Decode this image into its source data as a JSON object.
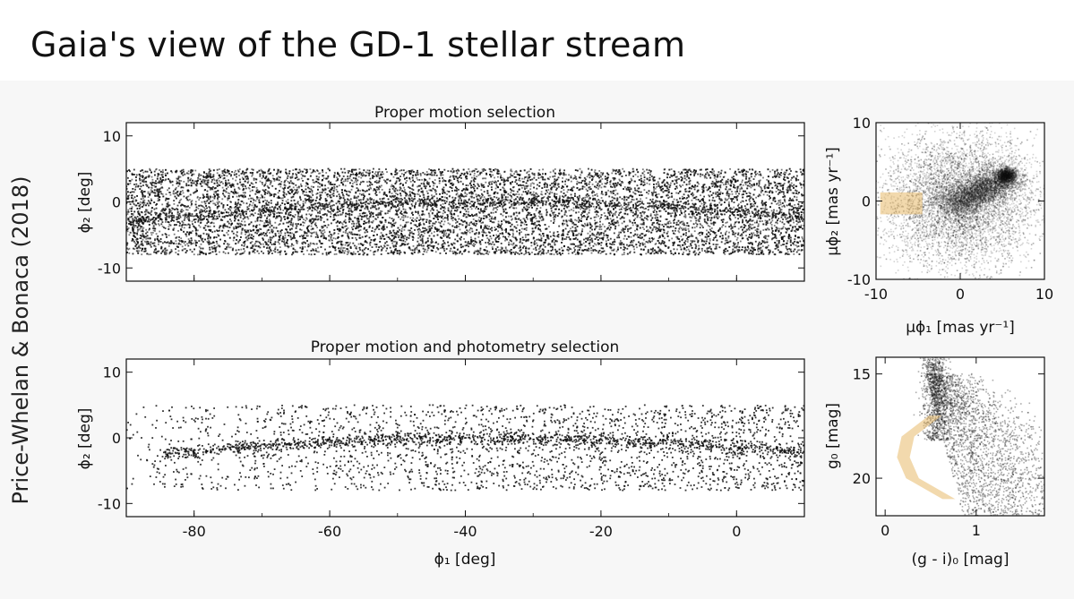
{
  "title": "Gaia's view of the GD-1 stellar stream",
  "credit": "Price-Whelan & Bonaca (2018)",
  "colors": {
    "background": "#f7f7f7",
    "points": "#111111",
    "selection_box": "#e8b96a"
  },
  "chart_data": [
    {
      "id": "pm-selection-sky",
      "type": "scatter",
      "title": "Proper motion selection",
      "xlabel": "",
      "ylabel": "ϕ₂ [deg]",
      "xlim": [
        -90,
        10
      ],
      "ylim": [
        -12,
        12
      ],
      "xticks": [
        -80,
        -60,
        -40,
        -20,
        0
      ],
      "yticks": [
        10,
        0,
        -10
      ],
      "yticklabels": [
        "10",
        "0",
        "-10"
      ],
      "xticklabels": [],
      "filled_band": {
        "phi2_min": -8,
        "phi2_max": 5,
        "description": "dense field of stars"
      },
      "stream_track": {
        "phi1": [
          -90,
          -70,
          -50,
          -30,
          -10,
          10
        ],
        "phi2": [
          -3,
          -1.2,
          -0.2,
          0,
          -0.7,
          -2.2
        ]
      }
    },
    {
      "id": "pm-space",
      "type": "scatter",
      "title": "",
      "xlabel": "μϕ₁ [mas yr⁻¹]",
      "ylabel": "μϕ₂ [mas yr⁻¹]",
      "xlim": [
        -10,
        10
      ],
      "ylim": [
        -10,
        10
      ],
      "xticks": [
        -10,
        0,
        10
      ],
      "xticklabels": [
        "-10",
        "0",
        "10"
      ],
      "yticks": [
        10,
        0,
        -10
      ],
      "yticklabels": [
        "10",
        "0",
        "-10"
      ],
      "selection_box": {
        "x": [
          -9.5,
          -4.5
        ],
        "y": [
          -1.7,
          1.1
        ]
      },
      "clumps": [
        {
          "x": 5.5,
          "y": 3.2,
          "spread": 1.0,
          "weight": "high"
        },
        {
          "x": 0,
          "y": 0,
          "spread": 4,
          "weight": "medium"
        }
      ]
    },
    {
      "id": "pm-phot-selection-sky",
      "type": "scatter",
      "title": "Proper motion and photometry selection",
      "xlabel": "ϕ₁ [deg]",
      "ylabel": "ϕ₂ [deg]",
      "xlim": [
        -90,
        10
      ],
      "ylim": [
        -12,
        12
      ],
      "xticks": [
        -80,
        -60,
        -40,
        -20,
        0
      ],
      "xticklabels": [
        "-80",
        "-60",
        "-40",
        "-20",
        "0"
      ],
      "yticks": [
        10,
        0,
        -10
      ],
      "yticklabels": [
        "10",
        "0",
        "-10"
      ],
      "stream_track": {
        "phi1": [
          -90,
          -70,
          -50,
          -30,
          -10,
          10
        ],
        "phi2": [
          -3,
          -1.2,
          -0.2,
          0,
          -0.7,
          -2.2
        ]
      },
      "background_band": {
        "phi2_min": -8,
        "phi2_max": 5
      }
    },
    {
      "id": "cmd",
      "type": "scatter",
      "title": "",
      "xlabel": "(g - i)₀ [mag]",
      "ylabel": "g₀ [mag]",
      "xlim": [
        -0.1,
        1.75
      ],
      "ylim": [
        21.8,
        14.2
      ],
      "xticks": [
        0,
        1
      ],
      "xticklabels": [
        "0",
        "1"
      ],
      "yticks": [
        15,
        20
      ],
      "yticklabels": [
        "15",
        "20"
      ],
      "isochrone_polygon": {
        "g": [
          17.0,
          18.0,
          19.0,
          20.0,
          21.0
        ],
        "color": [
          0.55,
          0.25,
          0.2,
          0.3,
          0.7
        ]
      }
    }
  ]
}
